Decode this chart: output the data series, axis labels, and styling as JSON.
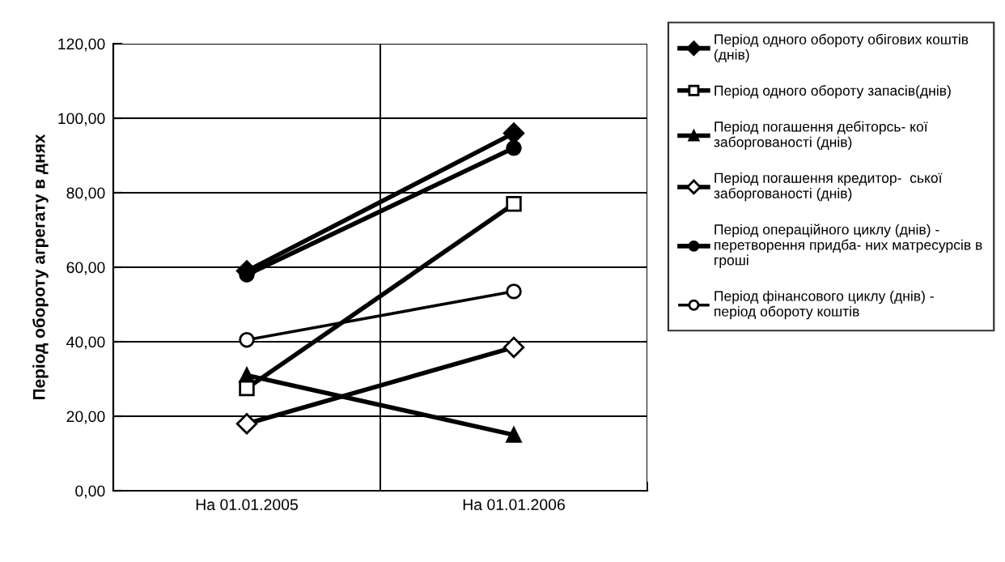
{
  "chart_data": {
    "type": "line",
    "ylabel": "Період обороту агрегату в днях",
    "categories": [
      "На 01.01.2005",
      "На 01.01.2006"
    ],
    "series": [
      {
        "name": "Період одного обороту обігових коштів (днів)",
        "color": "#000000",
        "values": [
          59,
          96
        ],
        "marker": "diamond"
      },
      {
        "name": "Період одного обороту запасів(днів)",
        "color": "#000000",
        "values": [
          27.5,
          77
        ],
        "marker": "square"
      },
      {
        "name": "Період погашення дебіторсь- кої заборгованості (днів)",
        "color": "#000000",
        "values": [
          31,
          15
        ],
        "marker": "triangle"
      },
      {
        "name": "Період погашення кредитор-  ської заборгованості (днів)",
        "color": "#000000",
        "values": [
          18,
          38.5
        ],
        "marker": "diamond"
      },
      {
        "name": "Період операційного циклу (днів) - перетворення придба- них матресурсів в гроші",
        "color": "#000000",
        "values": [
          58,
          92
        ],
        "marker": "circle"
      },
      {
        "name": "Період фінансового циклу (днів) - період обороту коштів",
        "color": "#000000",
        "values": [
          40.5,
          53.5
        ],
        "marker": "circle"
      }
    ],
    "ylim": [
      0,
      120
    ],
    "yticks": [
      {
        "value": 0,
        "label": "0,00"
      },
      {
        "value": 20,
        "label": "20,00"
      },
      {
        "value": 40,
        "label": "40,00"
      },
      {
        "value": 60,
        "label": "60,00"
      },
      {
        "value": 80,
        "label": "80,00"
      },
      {
        "value": 100,
        "label": "100,00"
      },
      {
        "value": 120,
        "label": "120,00"
      }
    ],
    "grid": true,
    "legend": "right",
    "line_style": "solid"
  }
}
